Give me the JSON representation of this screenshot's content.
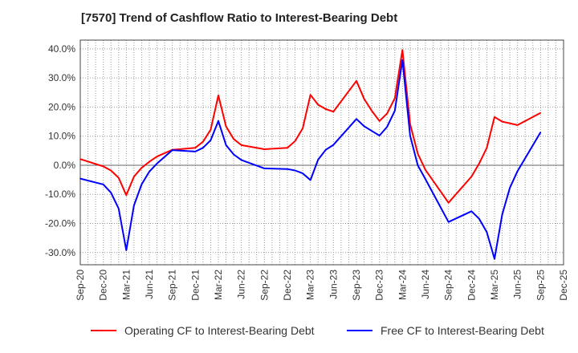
{
  "chart_data": {
    "type": "line",
    "title": "[7570]  Trend of Cashflow Ratio to Interest-Bearing Debt",
    "xlabel": "",
    "ylabel": "",
    "ylim": [
      -34.2,
      43
    ],
    "xlim": [
      "2020-09",
      "2025-12"
    ],
    "grid": true,
    "legend_position": "bottom",
    "y_ticks": [
      "40.0%",
      "30.0%",
      "20.0%",
      "10.0%",
      "0.0%",
      "-10.0%",
      "-20.0%",
      "-30.0%"
    ],
    "y_tick_values": [
      40,
      30,
      20,
      10,
      0,
      -10,
      -20,
      -30
    ],
    "x_ticks": [
      "Sep-20",
      "Dec-20",
      "Mar-21",
      "Jun-21",
      "Sep-21",
      "Dec-21",
      "Mar-22",
      "Jun-22",
      "Sep-22",
      "Dec-22",
      "Mar-23",
      "Jun-23",
      "Sep-23",
      "Dec-23",
      "Mar-24",
      "Jun-24",
      "Sep-24",
      "Dec-24",
      "Mar-25",
      "Jun-25",
      "Sep-25",
      "Dec-25"
    ],
    "x": [
      "2020-09",
      "2020-12",
      "2021-01",
      "2021-02",
      "2021-03",
      "2021-04",
      "2021-05",
      "2021-06",
      "2021-07",
      "2021-09",
      "2021-12",
      "2022-01",
      "2022-02",
      "2022-03",
      "2022-04",
      "2022-05",
      "2022-06",
      "2022-09",
      "2022-12",
      "2023-01",
      "2023-02",
      "2023-03",
      "2023-04",
      "2023-05",
      "2023-06",
      "2023-09",
      "2023-10",
      "2023-11",
      "2023-12",
      "2024-01",
      "2024-02",
      "2024-03",
      "2024-04",
      "2024-05",
      "2024-06",
      "2024-09",
      "2024-12",
      "2025-01",
      "2025-02",
      "2025-03",
      "2025-04",
      "2025-05",
      "2025-06",
      "2025-09"
    ],
    "series": [
      {
        "name": "Operating CF to Interest-Bearing Debt",
        "color": "#ff0000",
        "values": [
          2.1,
          -0.4,
          -1.8,
          -4.3,
          -10.3,
          -3.9,
          -0.9,
          1.2,
          3.0,
          5.3,
          6.0,
          8.1,
          12.2,
          24.0,
          13.3,
          9.0,
          6.9,
          5.5,
          6.0,
          8.3,
          12.7,
          24.2,
          20.8,
          19.3,
          18.4,
          29.0,
          22.8,
          18.7,
          15.2,
          17.8,
          23.0,
          39.6,
          14.1,
          4.0,
          -1.6,
          -12.9,
          -3.9,
          0.6,
          6.0,
          16.6,
          15.0,
          14.4,
          13.8,
          18.0
        ]
      },
      {
        "name": "Free CF to Interest-Bearing Debt",
        "color": "#0000ff",
        "values": [
          -4.6,
          -6.6,
          -9.4,
          -14.9,
          -29.2,
          -13.8,
          -6.6,
          -2.2,
          0.6,
          5.2,
          4.7,
          6.0,
          8.6,
          15.2,
          6.9,
          3.7,
          1.8,
          -1.1,
          -1.3,
          -1.8,
          -2.8,
          -5.1,
          1.9,
          5.3,
          7.0,
          15.9,
          13.4,
          11.8,
          10.2,
          13.2,
          18.7,
          36.2,
          10.1,
          0,
          -4.8,
          -19.5,
          -15.8,
          -18.4,
          -23.0,
          -32.2,
          -16.9,
          -7.8,
          -2.0,
          11.3
        ]
      }
    ]
  }
}
